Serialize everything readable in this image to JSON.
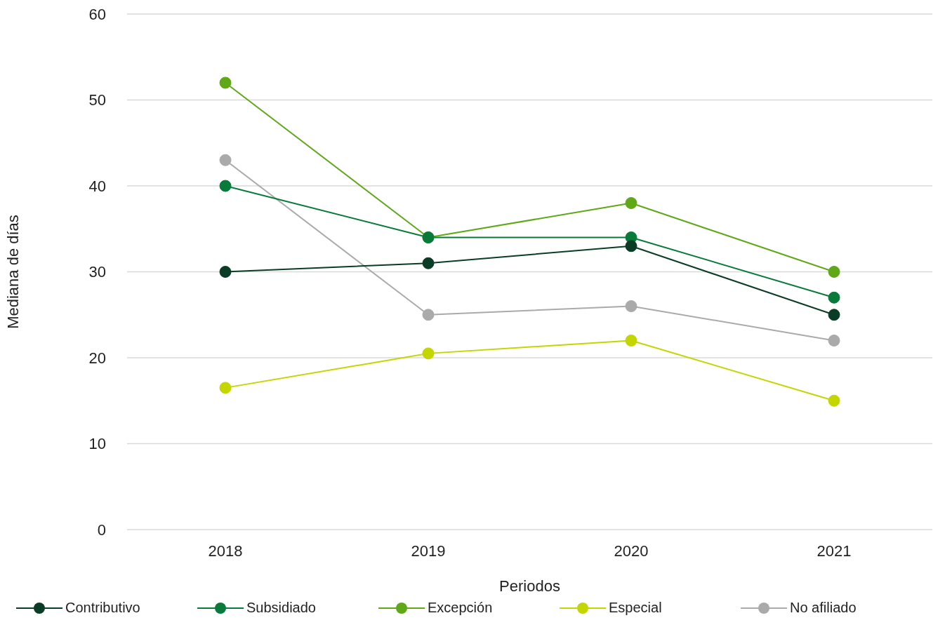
{
  "chart_data": {
    "type": "line",
    "xlabel": "Periodos",
    "ylabel": "Mediana de días",
    "categories": [
      "2018",
      "2019",
      "2020",
      "2021"
    ],
    "series": [
      {
        "name": "Contributivo",
        "color": "#0b3d26",
        "values": [
          30,
          31,
          33,
          25
        ]
      },
      {
        "name": "Subsidiado",
        "color": "#087a3a",
        "values": [
          40,
          34,
          34,
          27
        ]
      },
      {
        "name": "Excepción",
        "color": "#5fa818",
        "values": [
          52,
          34,
          38,
          30
        ]
      },
      {
        "name": "Especial",
        "color": "#c3d600",
        "values": [
          16.5,
          20.5,
          22,
          15
        ]
      },
      {
        "name": "No afiliado",
        "color": "#aaaaaa",
        "values": [
          43,
          25,
          26,
          22
        ]
      }
    ],
    "ylim": [
      0,
      60
    ],
    "yticks": [
      0,
      10,
      20,
      30,
      40,
      50,
      60
    ],
    "grid": "y",
    "legend": "bottom",
    "marker": "circle",
    "line_style": "solid"
  }
}
